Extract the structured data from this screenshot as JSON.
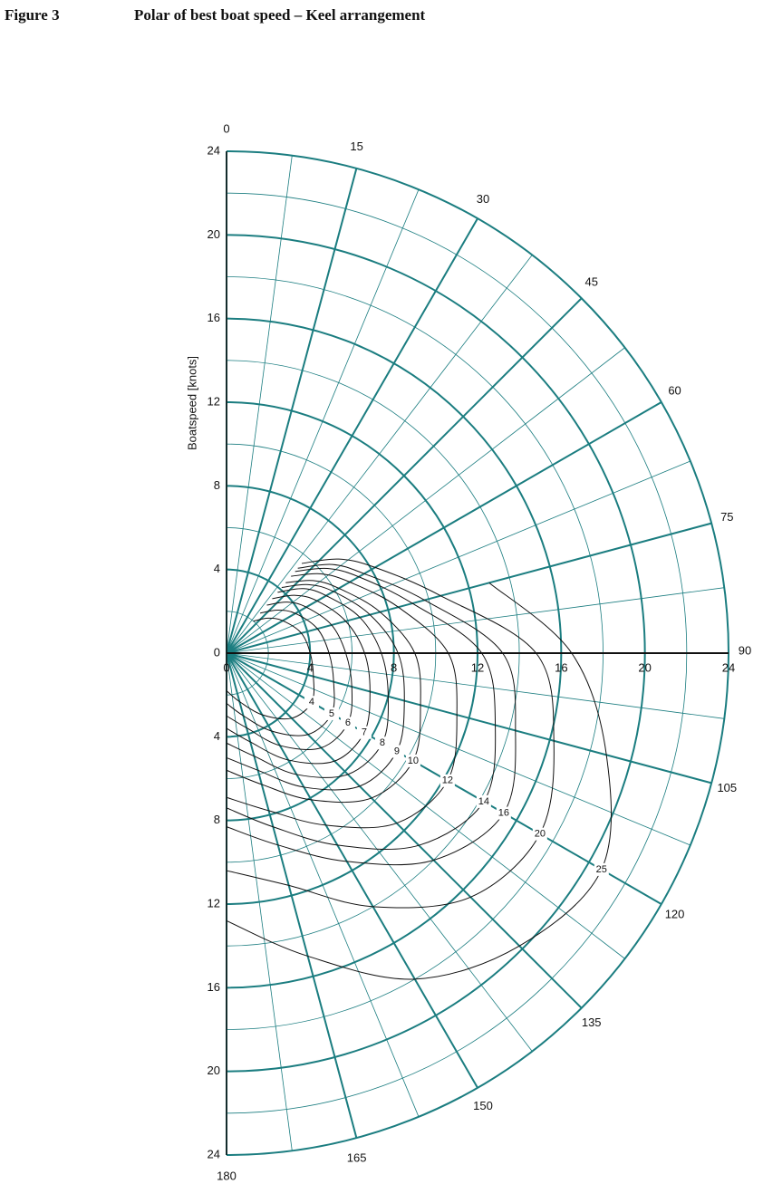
{
  "figure_label": "Figure 3",
  "chart_data": {
    "type": "polar",
    "title": "Polar of best boat speed – Keel arrangement",
    "ylabel": "Boatspeed [knots]",
    "rlim": [
      0,
      24
    ],
    "rticks": [
      0,
      4,
      8,
      12,
      16,
      20,
      24
    ],
    "rminor": [
      2,
      6,
      10,
      14,
      18,
      22
    ],
    "angles": [
      0,
      15,
      30,
      45,
      60,
      75,
      90,
      105,
      120,
      135,
      150,
      165,
      180
    ],
    "angle_minor": [
      7.5,
      22.5,
      37.5,
      52.5,
      67.5,
      82.5,
      97.5,
      112.5,
      127.5,
      142.5,
      157.5,
      172.5
    ],
    "grid_color": "#1b7d80",
    "label_angle": 120,
    "x": [
      40,
      50,
      60,
      75,
      90,
      105,
      120,
      135,
      150,
      165,
      180
    ],
    "series": [
      {
        "name": "4",
        "color": "#111111",
        "values": [
          2.0,
          2.6,
          3.1,
          3.7,
          4.0,
          4.3,
          4.7,
          4.4,
          3.4,
          2.4,
          1.8
        ]
      },
      {
        "name": "5",
        "color": "#111111",
        "values": [
          2.5,
          3.2,
          3.8,
          4.5,
          4.9,
          5.3,
          5.8,
          5.5,
          4.3,
          3.1,
          2.4
        ]
      },
      {
        "name": "6",
        "color": "#111111",
        "values": [
          3.0,
          3.8,
          4.4,
          5.2,
          5.7,
          6.2,
          6.7,
          6.4,
          5.1,
          3.7,
          3.0
        ]
      },
      {
        "name": "7",
        "color": "#111111",
        "values": [
          3.4,
          4.3,
          5.0,
          5.9,
          6.6,
          7.1,
          7.6,
          7.3,
          5.9,
          4.4,
          3.6
        ]
      },
      {
        "name": "8",
        "color": "#111111",
        "values": [
          3.8,
          4.8,
          5.5,
          6.6,
          7.4,
          8.0,
          8.6,
          8.2,
          6.7,
          5.1,
          4.3
        ]
      },
      {
        "name": "9",
        "color": "#111111",
        "values": [
          4.1,
          5.1,
          5.9,
          7.1,
          8.2,
          8.8,
          9.4,
          9.0,
          7.4,
          5.8,
          5.0
        ]
      },
      {
        "name": "10",
        "color": "#111111",
        "values": [
          4.4,
          5.4,
          6.2,
          7.6,
          9.0,
          9.6,
          10.3,
          9.8,
          8.1,
          6.5,
          5.6
        ]
      },
      {
        "name": "12",
        "color": "#111111",
        "values": [
          4.8,
          5.9,
          6.8,
          8.5,
          10.6,
          11.4,
          12.2,
          11.5,
          9.5,
          7.8,
          6.9
        ]
      },
      {
        "name": "14",
        "color": "#111111",
        "values": [
          5.1,
          6.3,
          7.3,
          9.2,
          12.2,
          13.3,
          14.2,
          13.0,
          10.6,
          8.6,
          7.4
        ]
      },
      {
        "name": "16",
        "color": "#111111",
        "values": [
          5.3,
          6.6,
          7.6,
          9.8,
          13.2,
          14.3,
          15.3,
          14.0,
          11.5,
          9.5,
          8.3
        ]
      },
      {
        "name": "20",
        "color": "#111111",
        "values": [
          5.6,
          7.0,
          8.2,
          10.6,
          14.8,
          16.2,
          17.3,
          16.5,
          14.0,
          11.5,
          10.4
        ]
      },
      {
        "name": "25",
        "color": "#111111",
        "values": [
          null,
          null,
          null,
          13.0,
          16.5,
          18.8,
          20.7,
          19.8,
          18.0,
          15.0,
          12.8
        ]
      }
    ]
  }
}
